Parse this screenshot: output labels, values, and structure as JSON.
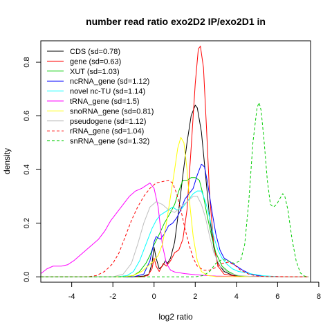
{
  "chart_data": {
    "type": "line",
    "title": "number read ratio exo2D2 IP/exo2D1 in",
    "xlabel": "log2 ratio",
    "ylabel": "density",
    "xlim": [
      -5.5,
      7.6
    ],
    "ylim": [
      -0.02,
      0.88
    ],
    "xticks": [
      -4,
      -2,
      0,
      2,
      4,
      6,
      8
    ],
    "yticks": [
      0.0,
      0.2,
      0.4,
      0.6,
      0.8
    ],
    "legend_position": "top-left",
    "series": [
      {
        "name": "CDS (sd=0.78)",
        "color": "#000000",
        "dash": "solid",
        "points": [
          [
            -5.5,
            0
          ],
          [
            -1.0,
            0
          ],
          [
            -0.5,
            0.003
          ],
          [
            -0.25,
            0.01
          ],
          [
            -0.1,
            0.05
          ],
          [
            0.0,
            0.11
          ],
          [
            0.1,
            0.07
          ],
          [
            0.25,
            0.03
          ],
          [
            0.4,
            0.04
          ],
          [
            0.55,
            0.06
          ],
          [
            0.65,
            0.05
          ],
          [
            0.8,
            0.07
          ],
          [
            1.0,
            0.13
          ],
          [
            1.2,
            0.25
          ],
          [
            1.4,
            0.38
          ],
          [
            1.6,
            0.5
          ],
          [
            1.8,
            0.6
          ],
          [
            2.0,
            0.64
          ],
          [
            2.1,
            0.63
          ],
          [
            2.3,
            0.54
          ],
          [
            2.5,
            0.38
          ],
          [
            2.7,
            0.22
          ],
          [
            2.9,
            0.11
          ],
          [
            3.1,
            0.05
          ],
          [
            3.4,
            0.02
          ],
          [
            3.8,
            0.006
          ],
          [
            4.5,
            0.001
          ],
          [
            7.5,
            0
          ]
        ]
      },
      {
        "name": "gene (sd=0.63)",
        "color": "#ff0000",
        "dash": "solid",
        "points": [
          [
            -5.5,
            0
          ],
          [
            -0.6,
            0
          ],
          [
            -0.3,
            0.005
          ],
          [
            -0.1,
            0.03
          ],
          [
            0.0,
            0.07
          ],
          [
            0.1,
            0.04
          ],
          [
            0.25,
            0.02
          ],
          [
            0.45,
            0.05
          ],
          [
            0.6,
            0.04
          ],
          [
            0.8,
            0.06
          ],
          [
            1.0,
            0.09
          ],
          [
            1.2,
            0.1
          ],
          [
            1.4,
            0.14
          ],
          [
            1.6,
            0.25
          ],
          [
            1.8,
            0.48
          ],
          [
            2.0,
            0.72
          ],
          [
            2.15,
            0.85
          ],
          [
            2.25,
            0.86
          ],
          [
            2.4,
            0.78
          ],
          [
            2.55,
            0.55
          ],
          [
            2.7,
            0.3
          ],
          [
            2.9,
            0.12
          ],
          [
            3.1,
            0.04
          ],
          [
            3.4,
            0.01
          ],
          [
            4.0,
            0.002
          ],
          [
            7.5,
            0
          ]
        ]
      },
      {
        "name": "XUT (sd=1.03)",
        "color": "#00cc00",
        "dash": "solid",
        "points": [
          [
            -5.5,
            0
          ],
          [
            -1.5,
            0
          ],
          [
            -1.0,
            0.005
          ],
          [
            -0.7,
            0.02
          ],
          [
            -0.4,
            0.05
          ],
          [
            -0.2,
            0.08
          ],
          [
            0.0,
            0.12
          ],
          [
            0.2,
            0.15
          ],
          [
            0.5,
            0.2
          ],
          [
            0.8,
            0.24
          ],
          [
            1.0,
            0.27
          ],
          [
            1.2,
            0.32
          ],
          [
            1.4,
            0.36
          ],
          [
            1.6,
            0.36
          ],
          [
            1.8,
            0.37
          ],
          [
            2.0,
            0.37
          ],
          [
            2.2,
            0.36
          ],
          [
            2.4,
            0.3
          ],
          [
            2.6,
            0.22
          ],
          [
            2.8,
            0.15
          ],
          [
            3.0,
            0.09
          ],
          [
            3.3,
            0.04
          ],
          [
            3.6,
            0.02
          ],
          [
            4.0,
            0.005
          ],
          [
            4.5,
            0.001
          ],
          [
            7.5,
            0
          ]
        ]
      },
      {
        "name": "ncRNA_gene (sd=1.12)",
        "color": "#0000ff",
        "dash": "solid",
        "points": [
          [
            -5.5,
            0
          ],
          [
            -1.0,
            0
          ],
          [
            -0.5,
            0.01
          ],
          [
            -0.2,
            0.06
          ],
          [
            0.0,
            0.13
          ],
          [
            0.1,
            0.15
          ],
          [
            0.3,
            0.14
          ],
          [
            0.5,
            0.16
          ],
          [
            0.7,
            0.19
          ],
          [
            0.9,
            0.2
          ],
          [
            1.1,
            0.22
          ],
          [
            1.3,
            0.25
          ],
          [
            1.5,
            0.29
          ],
          [
            1.7,
            0.31
          ],
          [
            1.9,
            0.33
          ],
          [
            2.1,
            0.38
          ],
          [
            2.3,
            0.42
          ],
          [
            2.45,
            0.41
          ],
          [
            2.6,
            0.35
          ],
          [
            2.8,
            0.25
          ],
          [
            3.0,
            0.16
          ],
          [
            3.2,
            0.1
          ],
          [
            3.4,
            0.07
          ],
          [
            3.6,
            0.06
          ],
          [
            3.8,
            0.05
          ],
          [
            4.0,
            0.04
          ],
          [
            4.3,
            0.025
          ],
          [
            4.7,
            0.01
          ],
          [
            5.2,
            0.003
          ],
          [
            6.0,
            0.001
          ],
          [
            7.5,
            0
          ]
        ]
      },
      {
        "name": "novel nc-TU (sd=1.14)",
        "color": "#00ffff",
        "dash": "solid",
        "points": [
          [
            -5.5,
            0
          ],
          [
            -1.8,
            0
          ],
          [
            -1.3,
            0.005
          ],
          [
            -1.0,
            0.02
          ],
          [
            -0.7,
            0.06
          ],
          [
            -0.4,
            0.12
          ],
          [
            -0.1,
            0.18
          ],
          [
            0.1,
            0.21
          ],
          [
            0.3,
            0.23
          ],
          [
            0.5,
            0.24
          ],
          [
            0.7,
            0.25
          ],
          [
            0.9,
            0.26
          ],
          [
            1.1,
            0.25
          ],
          [
            1.3,
            0.25
          ],
          [
            1.5,
            0.27
          ],
          [
            1.7,
            0.29
          ],
          [
            1.9,
            0.31
          ],
          [
            2.1,
            0.32
          ],
          [
            2.3,
            0.32
          ],
          [
            2.5,
            0.28
          ],
          [
            2.7,
            0.22
          ],
          [
            2.9,
            0.15
          ],
          [
            3.1,
            0.1
          ],
          [
            3.3,
            0.07
          ],
          [
            3.5,
            0.05
          ],
          [
            3.8,
            0.03
          ],
          [
            4.1,
            0.02
          ],
          [
            4.5,
            0.015
          ],
          [
            4.8,
            0.01
          ],
          [
            5.3,
            0.004
          ],
          [
            6.0,
            0.001
          ],
          [
            7.5,
            0
          ]
        ]
      },
      {
        "name": "tRNA_gene (sd=1.5)",
        "color": "#ff00ff",
        "dash": "solid",
        "points": [
          [
            -5.5,
            0.012
          ],
          [
            -5.2,
            0.03
          ],
          [
            -4.9,
            0.04
          ],
          [
            -4.5,
            0.04
          ],
          [
            -4.2,
            0.045
          ],
          [
            -3.9,
            0.06
          ],
          [
            -3.6,
            0.08
          ],
          [
            -3.3,
            0.1
          ],
          [
            -3.0,
            0.12
          ],
          [
            -2.7,
            0.14
          ],
          [
            -2.4,
            0.17
          ],
          [
            -2.1,
            0.21
          ],
          [
            -1.8,
            0.24
          ],
          [
            -1.5,
            0.27
          ],
          [
            -1.2,
            0.3
          ],
          [
            -0.9,
            0.32
          ],
          [
            -0.6,
            0.33
          ],
          [
            -0.4,
            0.34
          ],
          [
            -0.2,
            0.35
          ],
          [
            0.0,
            0.33
          ],
          [
            0.2,
            0.26
          ],
          [
            0.4,
            0.12
          ],
          [
            0.6,
            0.05
          ],
          [
            0.8,
            0.025
          ],
          [
            1.0,
            0.018
          ],
          [
            1.5,
            0.012
          ],
          [
            2.0,
            0.008
          ],
          [
            2.5,
            0.005
          ],
          [
            3.0,
            0.003
          ],
          [
            4.0,
            0.001
          ],
          [
            7.5,
            0
          ]
        ]
      },
      {
        "name": "snoRNA_gene (sd=0.81)",
        "color": "#ffff00",
        "dash": "solid",
        "points": [
          [
            -5.5,
            0
          ],
          [
            -1.5,
            0
          ],
          [
            -1.0,
            0.005
          ],
          [
            -0.6,
            0.02
          ],
          [
            -0.3,
            0.04
          ],
          [
            0.0,
            0.06
          ],
          [
            0.2,
            0.08
          ],
          [
            0.4,
            0.12
          ],
          [
            0.6,
            0.2
          ],
          [
            0.8,
            0.3
          ],
          [
            1.0,
            0.4
          ],
          [
            1.15,
            0.48
          ],
          [
            1.3,
            0.52
          ],
          [
            1.45,
            0.5
          ],
          [
            1.6,
            0.4
          ],
          [
            1.75,
            0.26
          ],
          [
            1.9,
            0.15
          ],
          [
            2.1,
            0.06
          ],
          [
            2.3,
            0.02
          ],
          [
            2.6,
            0.005
          ],
          [
            3.0,
            0.001
          ],
          [
            7.5,
            0
          ]
        ]
      },
      {
        "name": "pseudogene (sd=1.12)",
        "color": "#bebebe",
        "dash": "solid",
        "points": [
          [
            -5.5,
            0
          ],
          [
            -2.0,
            0
          ],
          [
            -1.5,
            0.01
          ],
          [
            -1.1,
            0.05
          ],
          [
            -0.8,
            0.12
          ],
          [
            -0.5,
            0.2
          ],
          [
            -0.2,
            0.26
          ],
          [
            0.1,
            0.28
          ],
          [
            0.4,
            0.27
          ],
          [
            0.7,
            0.25
          ],
          [
            1.0,
            0.24
          ],
          [
            1.3,
            0.26
          ],
          [
            1.6,
            0.28
          ],
          [
            1.9,
            0.3
          ],
          [
            2.1,
            0.3
          ],
          [
            2.3,
            0.27
          ],
          [
            2.5,
            0.22
          ],
          [
            2.7,
            0.15
          ],
          [
            2.9,
            0.09
          ],
          [
            3.2,
            0.04
          ],
          [
            3.6,
            0.015
          ],
          [
            4.1,
            0.005
          ],
          [
            4.8,
            0.001
          ],
          [
            7.5,
            0
          ]
        ]
      },
      {
        "name": "rRNA_gene (sd=1.04)",
        "color": "#ff0000",
        "dash": "dashed",
        "points": [
          [
            -5.5,
            0
          ],
          [
            -3.2,
            0
          ],
          [
            -2.8,
            0.005
          ],
          [
            -2.4,
            0.02
          ],
          [
            -2.0,
            0.05
          ],
          [
            -1.7,
            0.09
          ],
          [
            -1.4,
            0.15
          ],
          [
            -1.1,
            0.21
          ],
          [
            -0.8,
            0.26
          ],
          [
            -0.5,
            0.3
          ],
          [
            -0.2,
            0.33
          ],
          [
            0.1,
            0.35
          ],
          [
            0.4,
            0.355
          ],
          [
            0.7,
            0.36
          ],
          [
            0.9,
            0.35
          ],
          [
            1.1,
            0.31
          ],
          [
            1.3,
            0.25
          ],
          [
            1.5,
            0.18
          ],
          [
            1.7,
            0.12
          ],
          [
            1.9,
            0.07
          ],
          [
            2.1,
            0.04
          ],
          [
            2.4,
            0.025
          ],
          [
            2.7,
            0.025
          ],
          [
            3.0,
            0.035
          ],
          [
            3.3,
            0.05
          ],
          [
            3.6,
            0.055
          ],
          [
            3.9,
            0.045
          ],
          [
            4.2,
            0.025
          ],
          [
            4.6,
            0.01
          ],
          [
            5.0,
            0.003
          ],
          [
            5.5,
            0.001
          ],
          [
            7.5,
            0
          ]
        ]
      },
      {
        "name": "snRNA_gene (sd=1.32)",
        "color": "#00cc00",
        "dash": "dashed",
        "points": [
          [
            -5.5,
            0
          ],
          [
            2.0,
            0
          ],
          [
            2.4,
            0.005
          ],
          [
            2.7,
            0.02
          ],
          [
            3.0,
            0.05
          ],
          [
            3.3,
            0.065
          ],
          [
            3.6,
            0.06
          ],
          [
            3.9,
            0.05
          ],
          [
            4.2,
            0.06
          ],
          [
            4.4,
            0.12
          ],
          [
            4.6,
            0.28
          ],
          [
            4.8,
            0.5
          ],
          [
            5.0,
            0.63
          ],
          [
            5.1,
            0.65
          ],
          [
            5.2,
            0.62
          ],
          [
            5.35,
            0.5
          ],
          [
            5.5,
            0.36
          ],
          [
            5.65,
            0.27
          ],
          [
            5.8,
            0.26
          ],
          [
            5.95,
            0.27
          ],
          [
            6.1,
            0.29
          ],
          [
            6.25,
            0.31
          ],
          [
            6.35,
            0.3
          ],
          [
            6.5,
            0.25
          ],
          [
            6.7,
            0.14
          ],
          [
            6.9,
            0.06
          ],
          [
            7.1,
            0.015
          ],
          [
            7.3,
            0.003
          ],
          [
            7.5,
            0
          ]
        ]
      }
    ]
  }
}
